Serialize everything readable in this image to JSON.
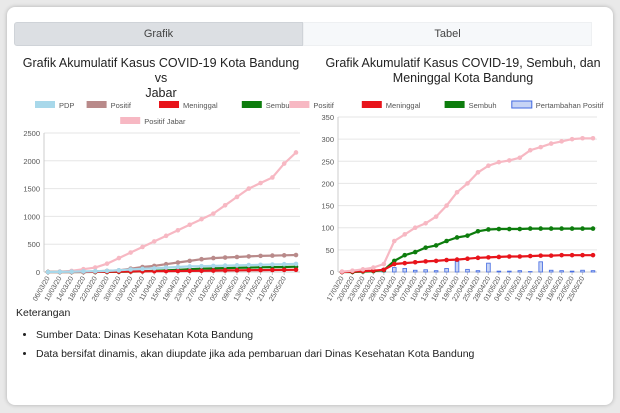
{
  "tabs": [
    {
      "label": "Grafik",
      "active": true
    },
    {
      "label": "Tabel",
      "active": false
    }
  ],
  "keterangan_label": "Keterangan",
  "notes": [
    "Sumber Data: Dinas Kesehatan Kota Bandung",
    "Data bersifat dinamis, akan diupdate jika ada pembaruan dari Dinas Kesehatan Kota Bandung"
  ],
  "chart_data": [
    {
      "type": "line",
      "title": "Grafik Akumulatif Kasus COVID-19 Kota Bandung vs Jabar",
      "title_lines": [
        "Grafik Akumulatif Kasus COVID-19 Kota Bandung vs",
        "Jabar"
      ],
      "legend_placement": "top",
      "grid": true,
      "ylim": [
        0,
        2500
      ],
      "y_ticks": [
        0,
        500,
        1000,
        1500,
        2000,
        2500
      ],
      "x_tick_labels": [
        "06/03/20",
        "10/03/20",
        "14/03/20",
        "18/03/20",
        "22/03/20",
        "26/03/20",
        "30/03/20",
        "03/04/20",
        "07/04/20",
        "11/04/20",
        "15/04/20",
        "19/04/20",
        "23/04/20",
        "27/04/20",
        "01/05/20",
        "05/05/20",
        "09/05/20",
        "13/05/20",
        "17/05/20",
        "21/05/20",
        "25/05/20"
      ],
      "x": [
        "06/03/20",
        "10/03/20",
        "14/03/20",
        "18/03/20",
        "22/03/20",
        "26/03/20",
        "30/03/20",
        "03/04/20",
        "07/04/20",
        "11/04/20",
        "15/04/20",
        "19/04/20",
        "23/04/20",
        "27/04/20",
        "01/05/20",
        "05/05/20",
        "09/05/20",
        "13/05/20",
        "17/05/20",
        "21/05/20",
        "25/05/20",
        "28/05/20"
      ],
      "series": [
        {
          "name": "PDP",
          "color": "#a8d8ea",
          "values": [
            0,
            2,
            5,
            10,
            15,
            20,
            30,
            45,
            55,
            65,
            80,
            90,
            100,
            105,
            110,
            115,
            120,
            125,
            130,
            135,
            140,
            145
          ]
        },
        {
          "name": "Positif",
          "color": "#b98a8a",
          "values": [
            0,
            0,
            2,
            5,
            10,
            20,
            30,
            60,
            90,
            110,
            140,
            170,
            200,
            230,
            250,
            260,
            270,
            280,
            290,
            295,
            300,
            305
          ]
        },
        {
          "name": "Meninggal",
          "color": "#e8141b",
          "values": [
            0,
            0,
            0,
            1,
            2,
            4,
            6,
            10,
            12,
            14,
            16,
            18,
            20,
            22,
            25,
            28,
            30,
            32,
            34,
            36,
            38,
            40
          ]
        },
        {
          "name": "Sembuh",
          "color": "#0d7d0d",
          "values": [
            0,
            0,
            0,
            0,
            1,
            2,
            4,
            8,
            12,
            20,
            30,
            40,
            50,
            60,
            65,
            70,
            75,
            80,
            85,
            88,
            90,
            95
          ]
        },
        {
          "name": "Positif Jabar",
          "color": "#f7b8c3",
          "values": [
            0,
            5,
            20,
            50,
            80,
            150,
            250,
            350,
            450,
            550,
            650,
            750,
            850,
            950,
            1050,
            1200,
            1350,
            1500,
            1600,
            1700,
            1950,
            2150
          ]
        }
      ]
    },
    {
      "type": "line",
      "title": "Grafik Akumulatif Kasus COVID-19, Sembuh, dan Meninggal Kota Bandung",
      "title_lines": [
        "Grafik Akumulatif Kasus COVID-19, Sembuh, dan",
        "Meninggal Kota Bandung"
      ],
      "legend_placement": "top",
      "grid": true,
      "ylim": [
        0,
        350
      ],
      "y_ticks": [
        0,
        50,
        100,
        150,
        200,
        250,
        300,
        350
      ],
      "x_tick_labels": [
        "17/03/20",
        "20/03/20",
        "23/03/20",
        "26/03/20",
        "29/03/20",
        "01/04/20",
        "04/04/20",
        "07/04/20",
        "10/04/20",
        "13/04/20",
        "16/04/20",
        "19/04/20",
        "22/04/20",
        "25/04/20",
        "28/04/20",
        "01/05/20",
        "04/05/20",
        "07/05/20",
        "10/05/20",
        "13/05/20",
        "16/05/20",
        "19/05/20",
        "22/05/20",
        "25/05/20"
      ],
      "x": [
        "17/03/20",
        "20/03/20",
        "23/03/20",
        "26/03/20",
        "29/03/20",
        "01/04/20",
        "04/04/20",
        "07/04/20",
        "10/04/20",
        "13/04/20",
        "16/04/20",
        "19/04/20",
        "22/04/20",
        "25/04/20",
        "28/04/20",
        "01/05/20",
        "04/05/20",
        "07/05/20",
        "10/05/20",
        "13/05/20",
        "16/05/20",
        "19/05/20",
        "22/05/20",
        "25/05/20",
        "28/05/20"
      ],
      "series": [
        {
          "name": "Positif",
          "color": "#f7b8c3",
          "values": [
            1,
            3,
            6,
            10,
            18,
            70,
            85,
            100,
            110,
            125,
            150,
            180,
            200,
            225,
            240,
            248,
            252,
            258,
            275,
            282,
            290,
            295,
            300,
            302,
            302
          ]
        },
        {
          "name": "Meninggal",
          "color": "#e8141b",
          "values": [
            0,
            1,
            2,
            3,
            5,
            18,
            20,
            22,
            24,
            25,
            27,
            28,
            30,
            32,
            33,
            34,
            35,
            35,
            36,
            37,
            37,
            38,
            38,
            38,
            38
          ]
        },
        {
          "name": "Sembuh",
          "color": "#0d7d0d",
          "values": [
            0,
            0,
            1,
            2,
            4,
            25,
            38,
            45,
            55,
            60,
            70,
            78,
            82,
            92,
            96,
            97,
            97,
            97,
            98,
            98,
            98,
            98,
            98,
            98,
            98
          ]
        },
        {
          "name": "Pertambahan Positif",
          "color": "#4169e1",
          "type": "bar",
          "values": [
            1,
            2,
            3,
            4,
            8,
            10,
            8,
            4,
            5,
            3,
            8,
            24,
            6,
            3,
            20,
            2,
            2,
            3,
            1,
            23,
            4,
            3,
            2,
            4,
            3
          ]
        }
      ]
    }
  ]
}
